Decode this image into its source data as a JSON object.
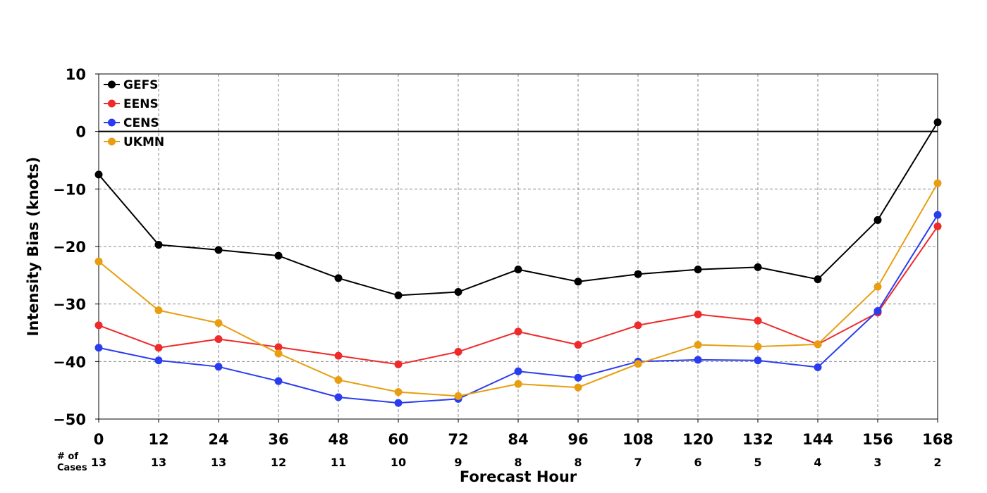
{
  "chart_data": {
    "type": "line",
    "xlabel": "Forecast Hour",
    "ylabel": "Intensity Bias (knots)",
    "x": [
      0,
      12,
      24,
      36,
      48,
      60,
      72,
      84,
      96,
      108,
      120,
      132,
      144,
      156,
      168
    ],
    "xlim": [
      0,
      168
    ],
    "ylim": [
      -50,
      10
    ],
    "yticks": [
      10,
      0,
      -10,
      -20,
      -30,
      -40,
      -50
    ],
    "ytick_labels": [
      "10",
      "0",
      "−10",
      "−20",
      "−30",
      "−40",
      "−50"
    ],
    "grid": true,
    "zero_line": true,
    "legend_position": "upper-left",
    "cases_label": "# of\nCases",
    "cases": [
      13,
      13,
      13,
      12,
      11,
      10,
      9,
      8,
      8,
      7,
      6,
      5,
      4,
      3,
      2
    ],
    "series": [
      {
        "name": "GEFS",
        "color": "#000000",
        "values": [
          -7.5,
          -19.7,
          -20.6,
          -21.6,
          -25.5,
          -28.5,
          -27.9,
          -24.0,
          -26.1,
          -24.8,
          -24.0,
          -23.6,
          -25.7,
          -15.4,
          1.6
        ]
      },
      {
        "name": "EENS",
        "color": "#ee2a2a",
        "values": [
          -33.7,
          -37.6,
          -36.1,
          -37.5,
          -39.0,
          -40.5,
          -38.3,
          -34.8,
          -37.1,
          -33.7,
          -31.8,
          -32.9,
          -37.0,
          -31.5,
          -16.5
        ]
      },
      {
        "name": "CENS",
        "color": "#2a3cf0",
        "values": [
          -37.6,
          -39.8,
          -40.9,
          -43.4,
          -46.2,
          -47.2,
          -46.5,
          -41.7,
          -42.8,
          -40.0,
          -39.7,
          -39.8,
          -41.0,
          -31.2,
          -14.5
        ]
      },
      {
        "name": "UKMN",
        "color": "#e89e10",
        "values": [
          -22.6,
          -31.1,
          -33.3,
          -38.6,
          -43.2,
          -45.3,
          -46.0,
          -43.9,
          -44.5,
          -40.4,
          -37.1,
          -37.4,
          -37.0,
          -27.0,
          -9.0
        ]
      }
    ]
  }
}
